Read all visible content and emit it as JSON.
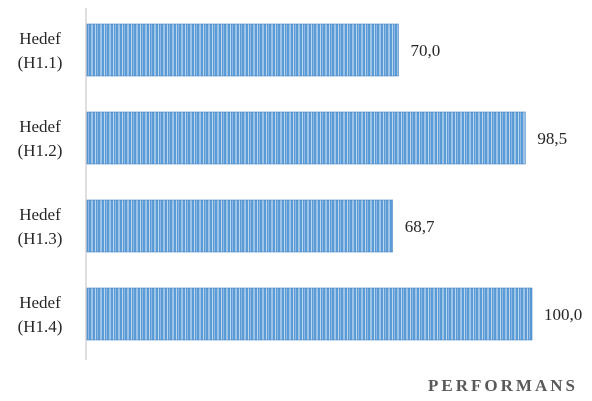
{
  "chart_data": {
    "type": "bar",
    "orientation": "horizontal",
    "categories": [
      [
        "Hedef",
        "(H1.1)"
      ],
      [
        "Hedef",
        "(H1.2)"
      ],
      [
        "Hedef",
        "(H1.3)"
      ],
      [
        "Hedef",
        "(H1.4)"
      ]
    ],
    "values": [
      70.0,
      98.5,
      68.7,
      100.0
    ],
    "value_labels": [
      "70,0",
      "98,5",
      "68,7",
      "100,0"
    ],
    "xlabel": "PERFORMANS",
    "xlim": [
      0,
      100
    ],
    "grid": false,
    "bar_color": "#5B9BD5",
    "bar_stripe_color": "#9DC3E6"
  }
}
